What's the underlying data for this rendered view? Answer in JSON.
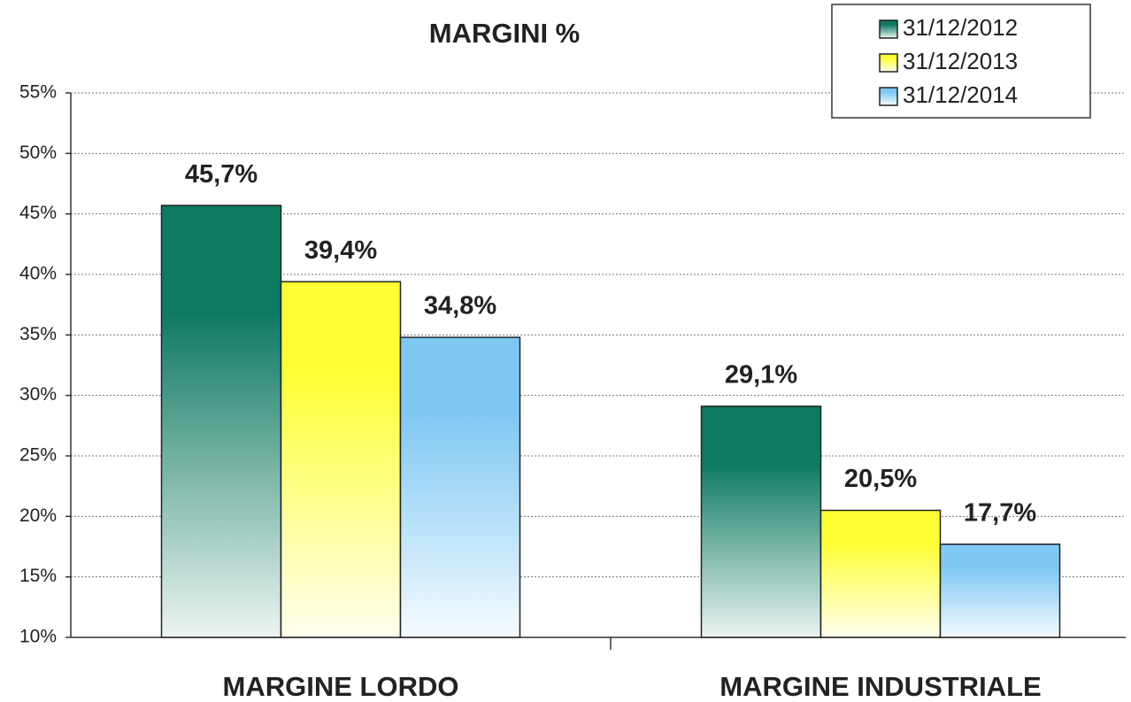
{
  "chart_data": {
    "type": "bar",
    "title": "MARGINI %",
    "categories": [
      "MARGINE LORDO",
      "MARGINE INDUSTRIALE"
    ],
    "series": [
      {
        "name": "31/12/2012",
        "color": "#0e7a60",
        "values": [
          45.7,
          29.1
        ],
        "value_labels": [
          "45,7%",
          "29,1%"
        ]
      },
      {
        "name": "31/12/2013",
        "color": "#ffff33",
        "values": [
          39.4,
          20.5
        ],
        "value_labels": [
          "39,4%",
          "20,5%"
        ]
      },
      {
        "name": "31/12/2014",
        "color": "#7ec8f4",
        "values": [
          34.8,
          17.7
        ],
        "value_labels": [
          "34,8%",
          "17,7%"
        ]
      }
    ],
    "ylim": [
      10,
      55
    ],
    "yticks": [
      {
        "value": 10,
        "label": "10%"
      },
      {
        "value": 15,
        "label": "15%"
      },
      {
        "value": 20,
        "label": "20%"
      },
      {
        "value": 25,
        "label": "25%"
      },
      {
        "value": 30,
        "label": "30%"
      },
      {
        "value": 35,
        "label": "35%"
      },
      {
        "value": 40,
        "label": "40%"
      },
      {
        "value": 45,
        "label": "45%"
      },
      {
        "value": 50,
        "label": "50%"
      },
      {
        "value": 55,
        "label": "55%"
      }
    ],
    "grid": true,
    "legend": "top-right"
  }
}
